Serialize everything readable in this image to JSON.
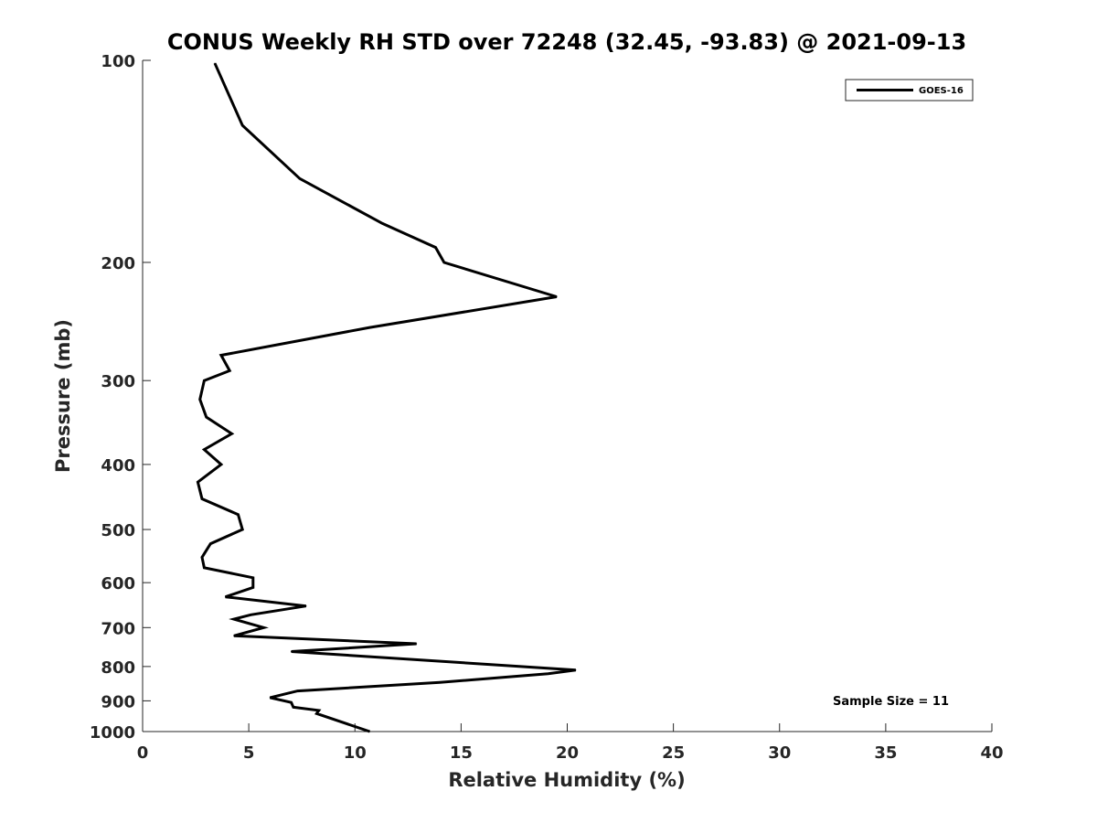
{
  "chart_data": {
    "type": "line",
    "title": "CONUS Weekly RH STD over 72248 (32.45, -93.83) @ 2021-09-13",
    "xlabel": "Relative Humidity (%)",
    "ylabel": "Pressure (mb)",
    "xlim": [
      0,
      40
    ],
    "ylim": [
      100,
      1000
    ],
    "y_scale": "log",
    "y_reversed": true,
    "grid": false,
    "legend_position": "top-right",
    "x_ticks": [
      "0",
      "5",
      "10",
      "15",
      "20",
      "25",
      "30",
      "35",
      "40"
    ],
    "y_ticks": [
      "100",
      "200",
      "300",
      "400",
      "500",
      "600",
      "700",
      "800",
      "900",
      "1000"
    ],
    "annotation": "Sample Size = 11",
    "series": [
      {
        "name": "GOES-16",
        "color": "#000000",
        "points": [
          [
            3.4,
            101
          ],
          [
            4.7,
            125
          ],
          [
            7.4,
            150
          ],
          [
            11.3,
            175
          ],
          [
            13.8,
            190
          ],
          [
            14.2,
            200
          ],
          [
            19.5,
            225
          ],
          [
            10.7,
            250
          ],
          [
            3.7,
            275
          ],
          [
            4.1,
            290
          ],
          [
            2.9,
            300
          ],
          [
            2.7,
            320
          ],
          [
            3.0,
            340
          ],
          [
            4.2,
            360
          ],
          [
            2.9,
            380
          ],
          [
            3.7,
            400
          ],
          [
            2.6,
            425
          ],
          [
            2.8,
            450
          ],
          [
            4.5,
            475
          ],
          [
            4.7,
            500
          ],
          [
            3.2,
            525
          ],
          [
            2.8,
            550
          ],
          [
            2.9,
            570
          ],
          [
            5.2,
            590
          ],
          [
            5.2,
            610
          ],
          [
            3.9,
            630
          ],
          [
            7.7,
            650
          ],
          [
            5.1,
            670
          ],
          [
            4.3,
            680
          ],
          [
            5.7,
            700
          ],
          [
            4.3,
            720
          ],
          [
            12.9,
            740
          ],
          [
            7.0,
            760
          ],
          [
            20.4,
            810
          ],
          [
            19.1,
            820
          ],
          [
            14.0,
            845
          ],
          [
            7.3,
            870
          ],
          [
            6.0,
            890
          ],
          [
            7.0,
            905
          ],
          [
            7.1,
            920
          ],
          [
            8.3,
            930
          ],
          [
            8.2,
            940
          ],
          [
            10.7,
            1000
          ]
        ]
      }
    ]
  }
}
